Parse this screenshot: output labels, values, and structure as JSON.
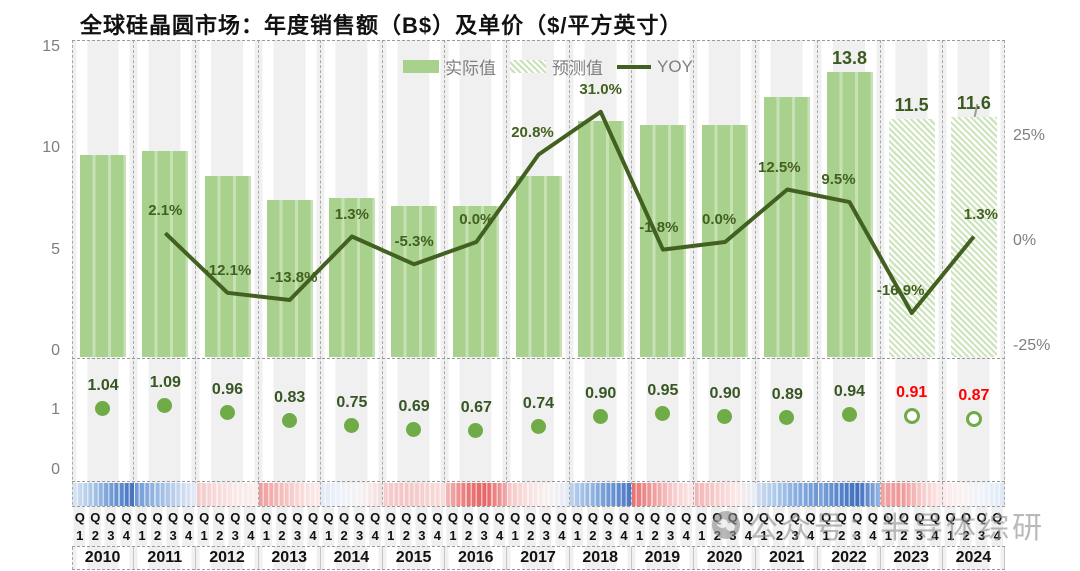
{
  "title": "全球硅晶圆市场：年度销售额（B$）及单价（$/平方英寸）",
  "legend": {
    "actual": "实际值",
    "forecast": "预测值",
    "yoy": "YOY"
  },
  "watermark": "公众号：半导体综研",
  "axes": {
    "sales_ticks": [
      {
        "label": "15",
        "value": 15
      },
      {
        "label": "10",
        "value": 10
      },
      {
        "label": "5",
        "value": 5
      },
      {
        "label": "0",
        "value": 0
      }
    ],
    "price_ticks": [
      {
        "label": "1",
        "value": 1
      },
      {
        "label": "0",
        "value": 0
      }
    ],
    "yoy_ticks": [
      {
        "label": "25%",
        "value": 25
      },
      {
        "label": "0%",
        "value": 0
      },
      {
        "label": "-25%",
        "value": -25
      }
    ]
  },
  "chart_data": {
    "type": "combo",
    "title": "全球硅晶圆市场：年度销售额（B$）及单价（$/平方英寸）",
    "panels": [
      "annual sales bars (B$) with YOY line",
      "unit price dots ($/sq inch)",
      "quarterly heatmap strip"
    ],
    "years": [
      "2010",
      "2011",
      "2012",
      "2013",
      "2014",
      "2015",
      "2016",
      "2017",
      "2018",
      "2019",
      "2020",
      "2021",
      "2022",
      "2023",
      "2024"
    ],
    "quarters": [
      "Q1",
      "Q2",
      "Q3",
      "Q4"
    ],
    "sales_b_usd": {
      "values": [
        9.7,
        9.9,
        8.7,
        7.5,
        7.6,
        7.2,
        7.2,
        8.7,
        11.4,
        11.2,
        11.2,
        12.6,
        13.8,
        11.5,
        11.6
      ],
      "forecast": [
        false,
        false,
        false,
        false,
        false,
        false,
        false,
        false,
        false,
        false,
        false,
        false,
        false,
        true,
        true
      ],
      "bar_labels": [
        "",
        "",
        "",
        "",
        "",
        "",
        "",
        "",
        "",
        "",
        "",
        "",
        "13.8",
        "11.5",
        "11.6"
      ],
      "ylim": [
        0,
        15
      ]
    },
    "yoy_pct": {
      "values": [
        null,
        2.1,
        -12.1,
        -13.8,
        1.3,
        -5.3,
        0.0,
        20.8,
        31.0,
        -1.8,
        0.0,
        12.5,
        9.5,
        -16.9,
        1.3
      ],
      "labels": [
        "",
        "2.1%",
        "-12.1%",
        "-13.8%",
        "1.3%",
        "-5.3%",
        "0.0%",
        "20.8%",
        "31.0%",
        "-1.8%",
        "0.0%",
        "12.5%",
        "9.5%",
        "-16.9%",
        "1.3%"
      ],
      "axis_ticks": [
        "25%",
        "0%",
        "-25%"
      ],
      "line_color": "#42601f"
    },
    "price_per_sq_inch": {
      "values": [
        1.04,
        1.09,
        0.96,
        0.83,
        0.75,
        0.69,
        0.67,
        0.74,
        0.9,
        0.95,
        0.9,
        0.89,
        0.94,
        0.91,
        0.87
      ],
      "labels": [
        "1.04",
        "1.09",
        "0.96",
        "0.83",
        "0.75",
        "0.69",
        "0.67",
        "0.74",
        "0.90",
        "0.95",
        "0.90",
        "0.89",
        "0.94",
        "0.91",
        "0.87"
      ],
      "forecast": [
        false,
        false,
        false,
        false,
        false,
        false,
        false,
        false,
        false,
        false,
        false,
        false,
        false,
        true,
        true
      ]
    },
    "quarter_heatmap_colors": {
      "2010": [
        "#d9e4f3",
        "#a6c4e7",
        "#6d97d4",
        "#4372bf"
      ],
      "2011": [
        "#6f99d5",
        "#94b6e2",
        "#bed1ed",
        "#e5ecf7"
      ],
      "2012": [
        "#f4caca",
        "#f8dada",
        "#fbe9e9",
        "#f9efef"
      ],
      "2013": [
        "#ef9c9c",
        "#f4b8b8",
        "#f9d8d8",
        "#fcecec"
      ],
      "2014": [
        "#e2eaf6",
        "#edf2f9",
        "#f7f1f1",
        "#f4dddd"
      ],
      "2015": [
        "#f6cece",
        "#f4c5c5",
        "#f6d1d1",
        "#f9dede"
      ],
      "2016": [
        "#f2b9b9",
        "#ea7878",
        "#e76565",
        "#f1abab"
      ],
      "2017": [
        "#f5c5c5",
        "#fadfdf",
        "#f8f2f2",
        "#e2eaf6"
      ],
      "2018": [
        "#bdd1ed",
        "#94b6e2",
        "#6d97d4",
        "#4a78c5"
      ],
      "2019": [
        "#e87070",
        "#ef9a9a",
        "#f6c9c9",
        "#fbe9e9"
      ],
      "2020": [
        "#f3b5b5",
        "#f7caca",
        "#fbe7e7",
        "#e6eef8"
      ],
      "2021": [
        "#cedcf1",
        "#aac7e9",
        "#87ace0",
        "#6d97d4"
      ],
      "2022": [
        "#7fa5da",
        "#5684ca",
        "#4070be",
        "#98b9e4"
      ],
      "2023": [
        "#f0a4a4",
        "#ee9797",
        "#f6caca",
        "#fbeaea"
      ],
      "2024": [
        "#fbeaea",
        "#f9f1f1",
        "#eef3fa",
        "#dde8f5"
      ]
    },
    "colors": {
      "bar_actual": "#a9d18e",
      "bar_forecast_hatch": "#c9e2b8",
      "yoy_line": "#42601f",
      "dot": "#6fac47",
      "price_label": "#375623",
      "price_label_forecast": "#ff0000"
    }
  }
}
